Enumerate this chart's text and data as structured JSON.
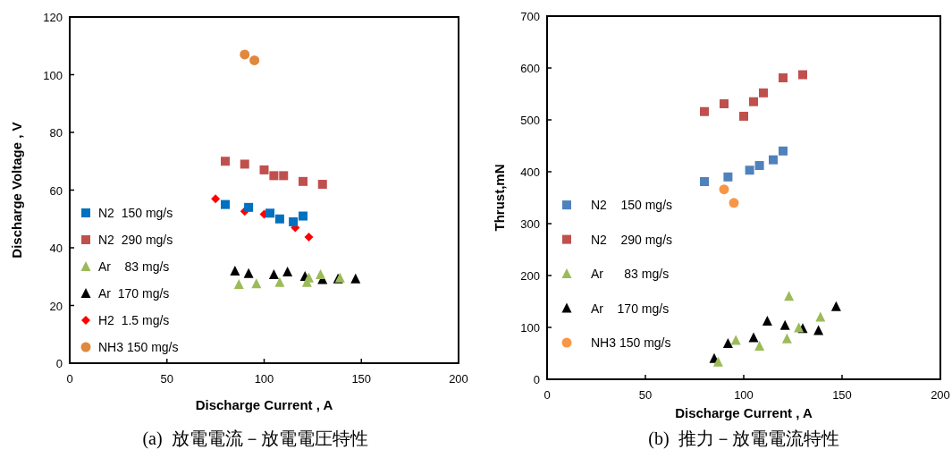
{
  "chart_data": [
    {
      "type": "scatter",
      "xlabel": "Discharge Current , A",
      "ylabel": "Discharge Voltage , V",
      "xlim": [
        0,
        200
      ],
      "xticks": [
        0,
        50,
        100,
        150,
        200
      ],
      "ylim": [
        0,
        120
      ],
      "yticks": [
        0,
        20,
        40,
        60,
        80,
        100,
        120
      ],
      "grid": false,
      "legend": "bottom left",
      "annotations": [
        "(a)  放電電流－放電電圧特性"
      ],
      "series": [
        {
          "name": "N2  150 mg/s",
          "color": "#0070c0",
          "marker": "square",
          "x": [
            80,
            92,
            103,
            108,
            115,
            120
          ],
          "values": [
            55,
            54,
            52,
            50,
            49,
            51
          ]
        },
        {
          "name": "N2  290 mg/s",
          "color": "#c0504d",
          "marker": "square",
          "x": [
            80,
            90,
            100,
            105,
            110,
            120,
            130
          ],
          "values": [
            70,
            69,
            67,
            65,
            65,
            63,
            62
          ]
        },
        {
          "name": "Ar    83 mg/s",
          "color": "#9bbb59",
          "marker": "triangle",
          "x": [
            87,
            96,
            108,
            122,
            123,
            129,
            139
          ],
          "values": [
            27.3,
            27.5,
            28,
            28,
            29.5,
            30.7,
            29.5
          ]
        },
        {
          "name": "Ar  170 mg/s",
          "color": "#000000",
          "marker": "triangle",
          "x": [
            85,
            92,
            105,
            112,
            121,
            130,
            138,
            147
          ],
          "values": [
            31.9,
            31.1,
            30.7,
            31.6,
            30.1,
            29,
            29.2,
            29.2
          ]
        },
        {
          "name": "H2  1.5 mg/s",
          "color": "#ff0000",
          "marker": "diamond",
          "x": [
            75,
            90,
            100,
            116,
            123
          ],
          "values": [
            57,
            52.6,
            51.6,
            47,
            43.7
          ]
        },
        {
          "name": "NH3 150 mg/s",
          "color": "#e0883c",
          "marker": "circle",
          "x": [
            90,
            95
          ],
          "values": [
            107,
            105
          ]
        }
      ]
    },
    {
      "type": "scatter",
      "xlabel": "Discharge Current , A",
      "ylabel": "Thrust,mN",
      "xlim": [
        0,
        200
      ],
      "xticks": [
        0,
        50,
        100,
        150,
        200
      ],
      "ylim": [
        0,
        700
      ],
      "yticks": [
        0,
        100,
        200,
        300,
        400,
        500,
        600,
        700
      ],
      "grid": false,
      "legend": "left",
      "annotations": [
        "(b)  推力－放電電流特性"
      ],
      "series": [
        {
          "name": "N2    150 mg/s",
          "color": "#4f81bd",
          "marker": "square",
          "x": [
            80,
            92,
            103,
            108,
            115,
            120
          ],
          "values": [
            381,
            390,
            403,
            412,
            423,
            440
          ]
        },
        {
          "name": "N2    290 mg/s",
          "color": "#c0504d",
          "marker": "square",
          "x": [
            80,
            90,
            100,
            105,
            110,
            120,
            130
          ],
          "values": [
            516,
            531,
            507,
            535,
            552,
            581,
            587
          ]
        },
        {
          "name": "Ar      83 mg/s",
          "color": "#9bbb59",
          "marker": "triangle",
          "x": [
            87,
            96,
            108,
            122,
            123,
            128,
            139
          ],
          "values": [
            33,
            75,
            64,
            78,
            160,
            99,
            120
          ]
        },
        {
          "name": "Ar    170 mg/s",
          "color": "#000000",
          "marker": "triangle",
          "x": [
            85,
            92,
            105,
            112,
            121,
            130,
            138,
            147
          ],
          "values": [
            40,
            69,
            80,
            112,
            104,
            98,
            94,
            140
          ]
        },
        {
          "name": "NH3 150 mg/s",
          "color": "#f79646",
          "marker": "circle",
          "x": [
            90,
            95
          ],
          "values": [
            366,
            340
          ]
        }
      ]
    }
  ]
}
